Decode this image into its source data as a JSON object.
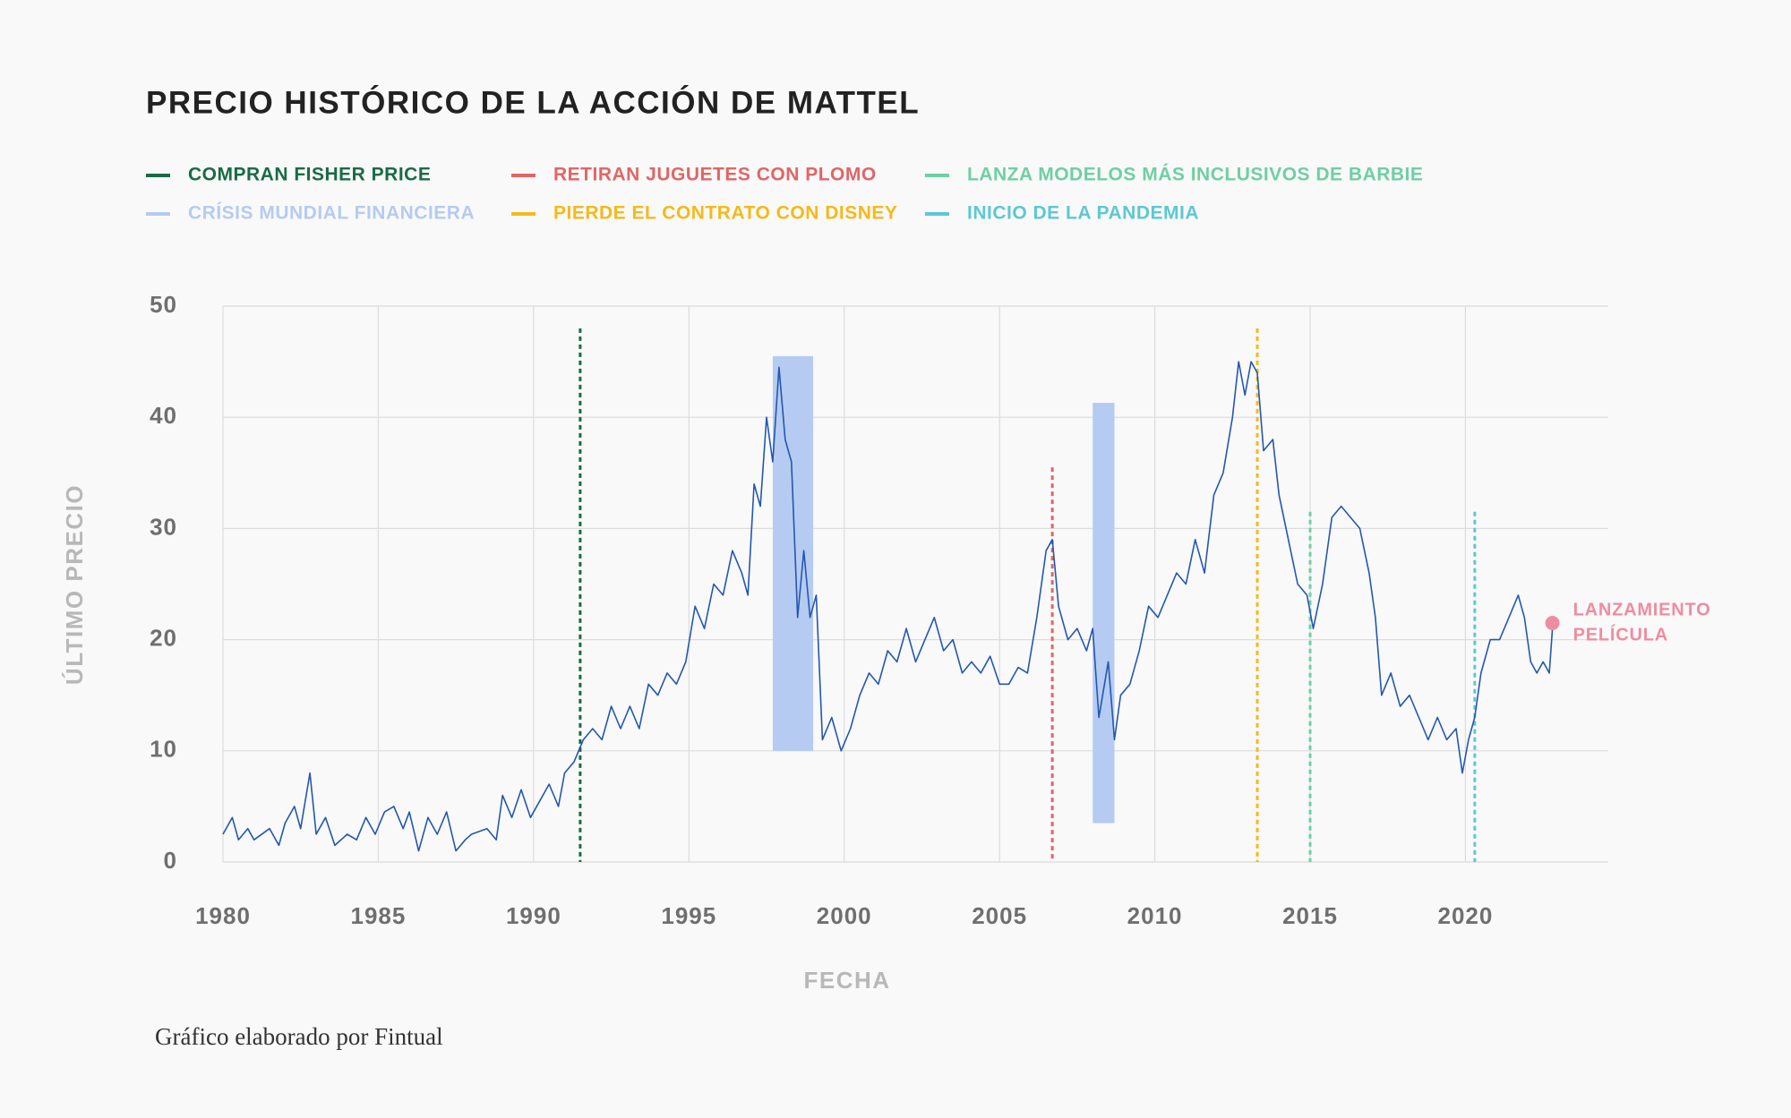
{
  "footer": "Gráfico elaborado por Fintual",
  "chart_data": {
    "type": "line",
    "title": "PRECIO HISTÓRICO DE LA ACCIÓN DE MATTEL",
    "xlabel": "FECHA",
    "ylabel": "ÚLTIMO PRECIO",
    "xlim": [
      1980,
      2024.6
    ],
    "ylim": [
      0,
      50
    ],
    "xticks": [
      1980,
      1985,
      1990,
      1995,
      2000,
      2005,
      2010,
      2015,
      2020
    ],
    "yticks": [
      0,
      10,
      20,
      30,
      40,
      50
    ],
    "grid": true,
    "color": "#2457b0",
    "x": [
      1980,
      1980.3,
      1980.5,
      1980.8,
      1981,
      1981.5,
      1981.8,
      1982,
      1982.3,
      1982.5,
      1982.8,
      1983,
      1983.3,
      1983.6,
      1984,
      1984.3,
      1984.6,
      1984.9,
      1985.2,
      1985.5,
      1985.8,
      1986,
      1986.3,
      1986.6,
      1986.9,
      1987.2,
      1987.5,
      1987.8,
      1988,
      1988.5,
      1988.8,
      1989,
      1989.3,
      1989.6,
      1989.9,
      1990.2,
      1990.5,
      1990.8,
      1991,
      1991.3,
      1991.6,
      1991.9,
      1992.2,
      1992.5,
      1992.8,
      1993.1,
      1993.4,
      1993.7,
      1994,
      1994.3,
      1994.6,
      1994.9,
      1995.2,
      1995.5,
      1995.8,
      1996.1,
      1996.4,
      1996.7,
      1996.9,
      1997.1,
      1997.3,
      1997.5,
      1997.7,
      1997.9,
      1998.1,
      1998.3,
      1998.5,
      1998.7,
      1998.9,
      1999.1,
      1999.3,
      1999.6,
      1999.9,
      2000.2,
      2000.5,
      2000.8,
      2001.1,
      2001.4,
      2001.7,
      2002,
      2002.3,
      2002.6,
      2002.9,
      2003.2,
      2003.5,
      2003.8,
      2004.1,
      2004.4,
      2004.7,
      2005,
      2005.3,
      2005.6,
      2005.9,
      2006.2,
      2006.5,
      2006.7,
      2006.9,
      2007.2,
      2007.5,
      2007.8,
      2008,
      2008.2,
      2008.5,
      2008.7,
      2008.9,
      2009.2,
      2009.5,
      2009.8,
      2010.1,
      2010.4,
      2010.7,
      2011,
      2011.3,
      2011.6,
      2011.9,
      2012.2,
      2012.5,
      2012.7,
      2012.9,
      2013.1,
      2013.3,
      2013.5,
      2013.8,
      2014,
      2014.3,
      2014.6,
      2014.9,
      2015.1,
      2015.4,
      2015.7,
      2016,
      2016.3,
      2016.6,
      2016.9,
      2017.1,
      2017.3,
      2017.6,
      2017.9,
      2018.2,
      2018.5,
      2018.8,
      2019.1,
      2019.4,
      2019.7,
      2019.9,
      2020.1,
      2020.3,
      2020.5,
      2020.8,
      2021.1,
      2021.4,
      2021.7,
      2021.9,
      2022.1,
      2022.3,
      2022.5,
      2022.7,
      2022.8
    ],
    "values": [
      2.5,
      4,
      2,
      3,
      2,
      3,
      1.5,
      3.5,
      5,
      3,
      8,
      2.5,
      4,
      1.5,
      2.5,
      2,
      4,
      2.5,
      4.5,
      5,
      3,
      4.5,
      1,
      4,
      2.5,
      4.5,
      1,
      2,
      2.5,
      3,
      2,
      6,
      4,
      6.5,
      4,
      5.5,
      7,
      5,
      8,
      9,
      11,
      12,
      11,
      14,
      12,
      14,
      12,
      16,
      15,
      17,
      16,
      18,
      23,
      21,
      25,
      24,
      28,
      26,
      24,
      34,
      32,
      40,
      36,
      44.5,
      38,
      36,
      22,
      28,
      22,
      24,
      11,
      13,
      10,
      12,
      15,
      17,
      16,
      19,
      18,
      21,
      18,
      20,
      22,
      19,
      20,
      17,
      18,
      17,
      18.5,
      16,
      16,
      17.5,
      17,
      22,
      28,
      29,
      23,
      20,
      21,
      19,
      21,
      13,
      18,
      11,
      15,
      16,
      19,
      23,
      22,
      24,
      26,
      25,
      29,
      26,
      33,
      35,
      40,
      45,
      42,
      45,
      44,
      37,
      38,
      33,
      29,
      25,
      24,
      21,
      25,
      31,
      32,
      31,
      30,
      26,
      22,
      15,
      17,
      14,
      15,
      13,
      11,
      13,
      11,
      12,
      8,
      11,
      13,
      17,
      20,
      20,
      22,
      24,
      22,
      18,
      17,
      18,
      17,
      21
    ],
    "highlights": [
      {
        "name": "COMPRAN FISHER PRICE",
        "color": "#1a6b45",
        "x": 1991.5,
        "top": 48
      },
      {
        "name": "CRÍSIS MUNDIAL FINANCIERA",
        "color": "#b5cbf2",
        "spans": [
          {
            "x": [
              1997.7,
              1999
            ],
            "y": [
              10,
              45.5
            ]
          },
          {
            "x": [
              2008,
              2008.7
            ],
            "y": [
              3.5,
              41.3
            ]
          }
        ]
      },
      {
        "name": "RETIRAN JUGUETES CON PLOMO",
        "color": "#e06666",
        "x": 2006.7,
        "top": 35.5
      },
      {
        "name": "PIERDE EL CONTRATO CON DISNEY",
        "color": "#f4b91b",
        "x": 2013.3,
        "top": 48
      },
      {
        "name": "LANZA MODELOS MÁS INCLUSIVOS DE BARBIE",
        "color": "#6fcfa4",
        "x": 2015,
        "top": 31.5
      },
      {
        "name": "INICIO DE LA PANDEMIA",
        "color": "#5cc8d4",
        "x": 2020.3,
        "top": 31.5
      }
    ],
    "marker": {
      "label_lines": [
        "LANZAMIENTO",
        "PELÍCULA"
      ],
      "x": 2022.8,
      "y": 21.5,
      "color": "#f08ca0"
    }
  }
}
